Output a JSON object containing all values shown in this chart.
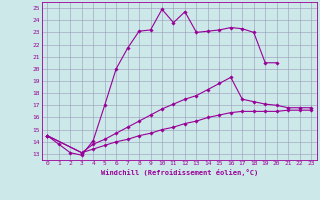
{
  "xlabel": "Windchill (Refroidissement éolien,°C)",
  "bg_color": "#cce8e8",
  "line_color": "#990099",
  "grid_color": "#9999bb",
  "xlim": [
    -0.5,
    23.5
  ],
  "ylim": [
    12.5,
    25.5
  ],
  "yticks": [
    13,
    14,
    15,
    16,
    17,
    18,
    19,
    20,
    21,
    22,
    23,
    24,
    25
  ],
  "xticks": [
    0,
    1,
    2,
    3,
    4,
    5,
    6,
    7,
    8,
    9,
    10,
    11,
    12,
    13,
    14,
    15,
    16,
    17,
    18,
    19,
    20,
    21,
    22,
    23
  ],
  "line1_x": [
    0,
    1,
    2,
    3,
    4,
    5,
    6,
    7,
    8,
    9,
    10,
    11,
    12,
    13,
    14,
    15,
    16,
    17,
    18,
    19,
    20
  ],
  "line1_y": [
    14.5,
    13.8,
    13.1,
    12.9,
    14.1,
    17.0,
    20.0,
    21.7,
    23.1,
    23.2,
    24.9,
    23.8,
    24.7,
    23.0,
    23.1,
    23.2,
    23.4,
    23.3,
    23.0,
    20.5,
    20.5
  ],
  "line2_x": [
    0,
    3,
    4,
    5,
    6,
    7,
    8,
    9,
    10,
    11,
    12,
    13,
    14,
    15,
    16,
    17,
    18,
    19,
    20,
    21,
    22,
    23
  ],
  "line2_y": [
    14.5,
    13.1,
    13.8,
    14.2,
    14.7,
    15.2,
    15.7,
    16.2,
    16.7,
    17.1,
    17.5,
    17.8,
    18.3,
    18.8,
    19.3,
    17.5,
    17.3,
    17.1,
    17.0,
    16.8,
    16.8,
    16.8
  ],
  "line3_x": [
    0,
    3,
    4,
    5,
    6,
    7,
    8,
    9,
    10,
    11,
    12,
    13,
    14,
    15,
    16,
    17,
    18,
    19,
    20,
    21,
    22,
    23
  ],
  "line3_y": [
    14.5,
    13.1,
    13.4,
    13.7,
    14.0,
    14.2,
    14.5,
    14.7,
    15.0,
    15.2,
    15.5,
    15.7,
    16.0,
    16.2,
    16.4,
    16.5,
    16.5,
    16.5,
    16.5,
    16.6,
    16.6,
    16.6
  ]
}
